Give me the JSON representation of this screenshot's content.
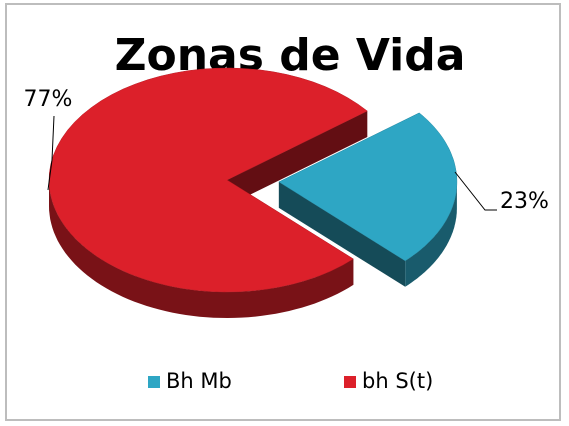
{
  "chart_data": {
    "type": "pie",
    "title": "Zonas de Vida",
    "categories": [
      "Bh Mb",
      "bh S(t)"
    ],
    "values": [
      23,
      77
    ],
    "value_labels": [
      "23%",
      "77%"
    ],
    "colors": [
      "#2ea6c4",
      "#dc202a"
    ],
    "legend": "bottom"
  }
}
